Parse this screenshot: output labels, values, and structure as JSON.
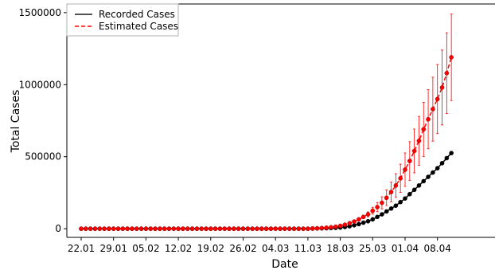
{
  "chart_data": {
    "type": "line",
    "title": "",
    "xlabel": "Date",
    "ylabel": "Total Cases",
    "x_tick_labels": [
      "22.01",
      "29.01",
      "05.02",
      "12.02",
      "19.02",
      "26.02",
      "04.03",
      "11.03",
      "18.03",
      "25.03",
      "01.04",
      "08.04"
    ],
    "y_tick_labels": [
      "0",
      "500000",
      "1000000",
      "1500000"
    ],
    "ylim": [
      -60000,
      1560000
    ],
    "legend_position": "top-left",
    "grid": false,
    "x_start_label": "22.01",
    "series": [
      {
        "name": "Recorded Cases",
        "color": "#000000",
        "linestyle": "solid",
        "marker": "circle",
        "dates": [
          "22.01",
          "23.01",
          "24.01",
          "25.01",
          "26.01",
          "27.01",
          "28.01",
          "29.01",
          "30.01",
          "31.01",
          "01.02",
          "02.02",
          "03.02",
          "04.02",
          "05.02",
          "06.02",
          "07.02",
          "08.02",
          "09.02",
          "10.02",
          "11.02",
          "12.02",
          "13.02",
          "14.02",
          "15.02",
          "16.02",
          "17.02",
          "18.02",
          "19.02",
          "20.02",
          "21.02",
          "22.02",
          "23.02",
          "24.02",
          "25.02",
          "26.02",
          "27.02",
          "28.02",
          "29.02",
          "01.03",
          "02.03",
          "03.03",
          "04.03",
          "05.03",
          "06.03",
          "07.03",
          "08.03",
          "09.03",
          "10.03",
          "11.03",
          "12.03",
          "13.03",
          "14.03",
          "15.03",
          "16.03",
          "17.03",
          "18.03",
          "19.03",
          "20.03",
          "21.03",
          "22.03",
          "23.03",
          "24.03",
          "25.03",
          "26.03",
          "27.03",
          "28.03",
          "29.03",
          "30.03",
          "31.03",
          "01.04",
          "02.04",
          "03.04",
          "04.04",
          "05.04",
          "06.04",
          "07.04",
          "08.04",
          "09.04",
          "10.04",
          "11.04"
        ],
        "values": [
          0,
          0,
          0,
          0,
          0,
          0,
          0,
          0,
          0,
          0,
          0,
          0,
          0,
          0,
          0,
          0,
          0,
          0,
          0,
          0,
          0,
          0,
          0,
          0,
          0,
          0,
          0,
          0,
          0,
          0,
          0,
          0,
          0,
          0,
          0,
          0,
          0,
          0,
          0,
          0,
          0,
          0,
          0,
          0,
          0,
          0,
          0,
          0,
          0,
          0,
          1000,
          2000,
          2500,
          3500,
          4500,
          6000,
          8000,
          12000,
          17000,
          24000,
          32000,
          42000,
          52000,
          65000,
          82000,
          100000,
          120000,
          140000,
          160000,
          185000,
          210000,
          240000,
          270000,
          300000,
          330000,
          360000,
          390000,
          420000,
          455000,
          490000,
          525000
        ]
      },
      {
        "name": "Estimated Cases",
        "color": "#ff0000",
        "linestyle": "dashed",
        "marker": "circle",
        "dates": [
          "22.01",
          "23.01",
          "24.01",
          "25.01",
          "26.01",
          "27.01",
          "28.01",
          "29.01",
          "30.01",
          "31.01",
          "01.02",
          "02.02",
          "03.02",
          "04.02",
          "05.02",
          "06.02",
          "07.02",
          "08.02",
          "09.02",
          "10.02",
          "11.02",
          "12.02",
          "13.02",
          "14.02",
          "15.02",
          "16.02",
          "17.02",
          "18.02",
          "19.02",
          "20.02",
          "21.02",
          "22.02",
          "23.02",
          "24.02",
          "25.02",
          "26.02",
          "27.02",
          "28.02",
          "29.02",
          "01.03",
          "02.03",
          "03.03",
          "04.03",
          "05.03",
          "06.03",
          "07.03",
          "08.03",
          "09.03",
          "10.03",
          "11.03",
          "12.03",
          "13.03",
          "14.03",
          "15.03",
          "16.03",
          "17.03",
          "18.03",
          "19.03",
          "20.03",
          "21.03",
          "22.03",
          "23.03",
          "24.03",
          "25.03",
          "26.03",
          "27.03",
          "28.03",
          "29.03",
          "30.03",
          "31.03",
          "01.04",
          "02.04",
          "03.04",
          "04.04",
          "05.04",
          "06.04",
          "07.04",
          "08.04",
          "09.04",
          "10.04",
          "11.04"
        ],
        "values": [
          0,
          0,
          0,
          0,
          0,
          0,
          0,
          0,
          0,
          0,
          0,
          0,
          0,
          0,
          0,
          0,
          0,
          0,
          0,
          0,
          0,
          0,
          0,
          0,
          0,
          0,
          0,
          0,
          0,
          0,
          0,
          0,
          0,
          0,
          0,
          0,
          0,
          0,
          0,
          0,
          0,
          0,
          0,
          0,
          0,
          0,
          0,
          0,
          0,
          0,
          2000,
          3000,
          5000,
          7000,
          10000,
          14000,
          20000,
          28000,
          38000,
          50000,
          65000,
          82000,
          100000,
          125000,
          150000,
          180000,
          215000,
          255000,
          300000,
          350000,
          410000,
          470000,
          540000,
          610000,
          690000,
          760000,
          830000,
          900000,
          980000,
          1080000,
          1190000
        ],
        "error_start_date": "21.03",
        "error_margin": [
          0,
          0,
          0,
          0,
          0,
          0,
          0,
          0,
          0,
          0,
          0,
          0,
          0,
          0,
          0,
          0,
          0,
          0,
          0,
          0,
          0,
          0,
          0,
          0,
          0,
          0,
          0,
          0,
          0,
          0,
          0,
          0,
          0,
          0,
          0,
          0,
          0,
          0,
          0,
          0,
          0,
          0,
          0,
          0,
          0,
          0,
          0,
          0,
          0,
          0,
          0,
          0,
          0,
          0,
          0,
          0,
          0,
          0,
          0,
          5000,
          8000,
          12000,
          17000,
          24000,
          32000,
          42000,
          54000,
          68000,
          82000,
          98000,
          116000,
          134000,
          152000,
          170000,
          188000,
          205000,
          222000,
          240000,
          260000,
          280000,
          300000
        ]
      }
    ]
  }
}
